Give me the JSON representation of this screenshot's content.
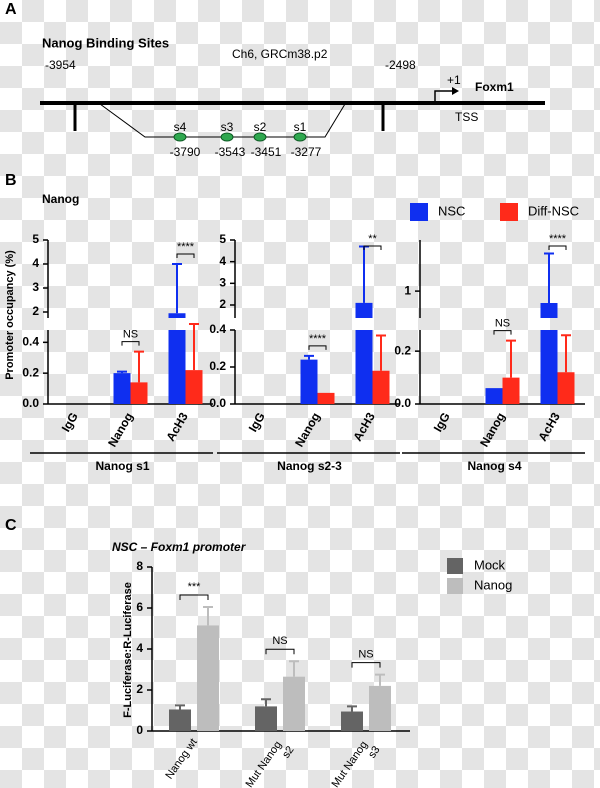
{
  "panel_labels": [
    "A",
    "B",
    "C"
  ],
  "panel_a": {
    "title": "Nanog Binding Sites",
    "assembly": "Ch6, GRCm38.p2",
    "region_start": -3954,
    "region_end": -2498,
    "tss_offset": "+1",
    "gene": "Foxm1",
    "tss_label": "TSS",
    "sites": [
      {
        "name": "s4",
        "position": -3790
      },
      {
        "name": "s3",
        "position": -3543
      },
      {
        "name": "s2",
        "position": -3451
      },
      {
        "name": "s1",
        "position": -3277
      }
    ]
  },
  "chart_data": [
    {
      "type": "bar",
      "title": "Nanog",
      "ylabel": "Promoter occupancy (%)",
      "series": [
        {
          "name": "NSC",
          "color": "#0f2ff0"
        },
        {
          "name": "Diff-NSC",
          "color": "#ff2a1a"
        }
      ],
      "panels": [
        {
          "label": "Nanog s1",
          "categories": [
            "IgG",
            "Nanog",
            "AcH3"
          ],
          "values": [
            [
              0,
              0.2,
              1.95
            ],
            [
              0,
              0.14,
              0.22
            ]
          ],
          "errors": [
            [
              null,
              0.01,
              2.05
            ],
            [
              null,
              0.2,
              0.27
            ]
          ],
          "significance": [
            null,
            "NS",
            "****"
          ],
          "y_segments": [
            {
              "ylim": [
                0,
                0.48
              ],
              "yticks": [
                {
                  "value": 0,
                  "label": "0.0"
                },
                0.2,
                0.4
              ]
            },
            {
              "ylim": [
                1.75,
                5
              ],
              "yticks": [
                2,
                3,
                4,
                5
              ]
            }
          ]
        },
        {
          "label": "Nanog s2-3",
          "categories": [
            "IgG",
            "Nanog",
            "AcH3"
          ],
          "values": [
            [
              0,
              0.24,
              2.1
            ],
            [
              0,
              0.06,
              0.18
            ]
          ],
          "errors": [
            [
              null,
              0.02,
              2.6
            ],
            [
              null,
              null,
              0.19
            ]
          ],
          "significance": [
            null,
            "****",
            "**"
          ],
          "y_segments": [
            {
              "ylim": [
                0,
                0.4
              ],
              "yticks": [
                {
                  "value": 0,
                  "label": "0.0"
                },
                0.2,
                0.4
              ]
            },
            {
              "ylim": [
                1.4,
                5
              ],
              "yticks": [
                2,
                3,
                4,
                5
              ]
            }
          ]
        },
        {
          "label": "Nanog s4",
          "categories": [
            "IgG",
            "Nanog",
            "AcH3"
          ],
          "values": [
            [
              0,
              0.06,
              0.78
            ],
            [
              0,
              0.1,
              0.12
            ]
          ],
          "errors": [
            [
              null,
              null,
              0.92
            ],
            [
              null,
              0.14,
              0.14
            ]
          ],
          "significance": [
            null,
            "NS",
            "****"
          ],
          "y_segments": [
            {
              "ylim": [
                0,
                0.28
              ],
              "yticks": [
                {
                  "value": 0,
                  "label": "0.0"
                },
                0.2
              ]
            },
            {
              "ylim": [
                0.5,
                1.95
              ],
              "yticks": [
                1
              ]
            }
          ]
        }
      ]
    },
    {
      "type": "bar",
      "title": "NSC – Foxm1 promoter",
      "ylabel": "F-Luciferase:R-Luciferase",
      "categories": [
        "Nanog wt",
        "Mut Nanog s2",
        "Mut Nanog s3"
      ],
      "series": [
        {
          "name": "Mock",
          "color": "#646464",
          "values": [
            1.05,
            1.2,
            0.95
          ],
          "errors": [
            0.2,
            0.35,
            0.25
          ]
        },
        {
          "name": "Nanog",
          "color": "#bdbdbd",
          "values": [
            5.15,
            2.65,
            2.2
          ],
          "errors": [
            0.9,
            0.75,
            0.55
          ]
        }
      ],
      "significance": [
        "***",
        "NS",
        "NS"
      ],
      "ylim": [
        0,
        8
      ],
      "yticks": [
        0,
        2,
        4,
        6,
        8
      ]
    }
  ]
}
